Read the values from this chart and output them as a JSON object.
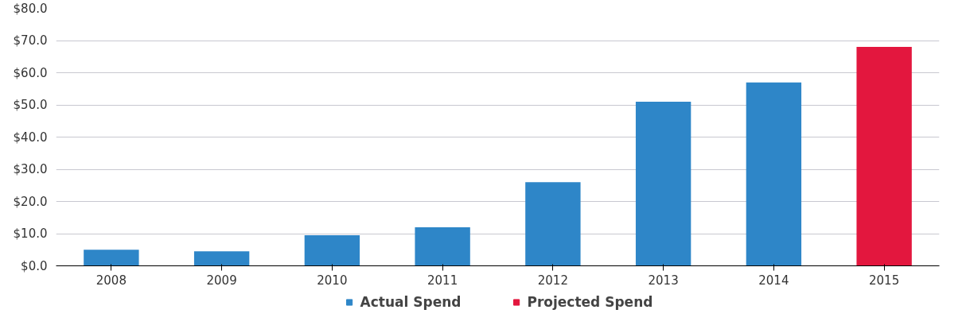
{
  "chart_data": {
    "type": "bar",
    "categories": [
      "2008",
      "2009",
      "2010",
      "2011",
      "2012",
      "2013",
      "2014",
      "2015"
    ],
    "series": [
      {
        "name": "Actual Spend",
        "color": "#2e86c8",
        "values": [
          5,
          4.5,
          9.5,
          12,
          26,
          51,
          57,
          null
        ]
      },
      {
        "name": "Projected Spend",
        "color": "#e3173e",
        "values": [
          null,
          null,
          null,
          null,
          null,
          null,
          null,
          68
        ]
      }
    ],
    "ylim": [
      0,
      80
    ],
    "yticks": [
      {
        "value": 0,
        "label": "$0.0"
      },
      {
        "value": 10,
        "label": "$10.0"
      },
      {
        "value": 20,
        "label": "$20.0"
      },
      {
        "value": 30,
        "label": "$30.0"
      },
      {
        "value": 40,
        "label": "$40.0"
      },
      {
        "value": 50,
        "label": "$50.0"
      },
      {
        "value": 60,
        "label": "$60.0"
      },
      {
        "value": 70,
        "label": "$70.0"
      },
      {
        "value": 80,
        "label": "$80.0"
      }
    ],
    "grid": "y",
    "legend": "bottom"
  }
}
